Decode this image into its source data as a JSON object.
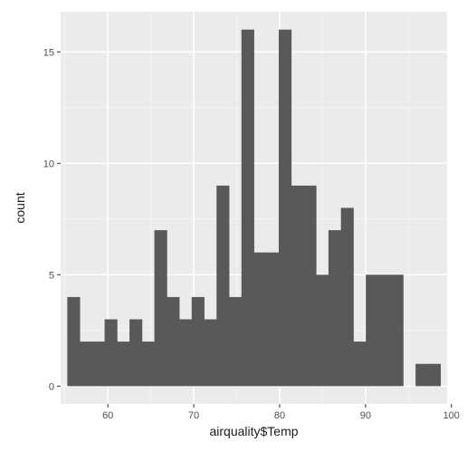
{
  "chart_data": {
    "type": "bar",
    "subtype": "histogram",
    "title": "",
    "xlabel": "airquality$Temp",
    "ylabel": "count",
    "xlim": [
      54.5,
      99.5
    ],
    "ylim": [
      -0.8,
      16.8
    ],
    "x_ticks": [
      60,
      70,
      80,
      90,
      100
    ],
    "y_ticks": [
      0,
      5,
      10,
      15
    ],
    "grid": true,
    "legend": "none",
    "bin_width": 1.4483,
    "bin_start": 55.2759,
    "counts": [
      4,
      2,
      2,
      3,
      2,
      3,
      2,
      7,
      4,
      3,
      4,
      3,
      9,
      4,
      16,
      6,
      6,
      16,
      9,
      9,
      5,
      7,
      8,
      2,
      5,
      5,
      5,
      0,
      1,
      1
    ],
    "colors": {
      "bar": "#595959",
      "panel": "#ebebeb",
      "grid_major": "#ffffff",
      "grid_minor": "#f5f5f5"
    }
  }
}
